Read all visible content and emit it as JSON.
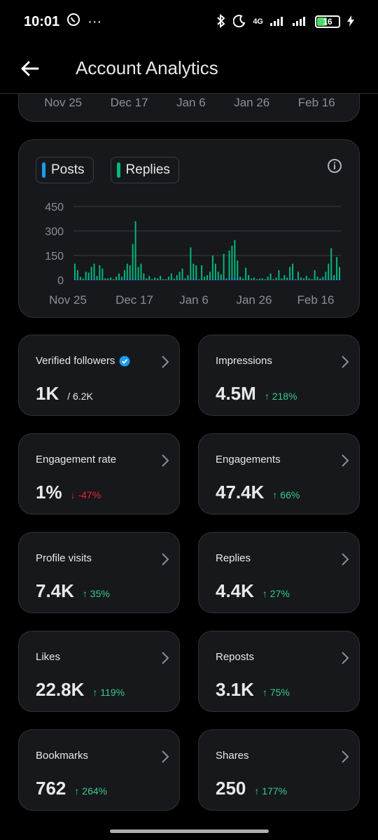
{
  "status_bar": {
    "time": "10:01",
    "network": "4G",
    "battery": "16"
  },
  "header": {
    "title": "Account Analytics"
  },
  "top_card": {
    "labels": [
      "Nov 25",
      "Dec 17",
      "Jan 6",
      "Jan 26",
      "Feb 16"
    ]
  },
  "legend": {
    "posts": "Posts",
    "replies": "Replies",
    "posts_color": "#1d9bf0",
    "replies_color": "#00ba7c"
  },
  "chart_data": {
    "type": "bar",
    "y_ticks": [
      "450",
      "300",
      "150",
      "0"
    ],
    "ylim": [
      0,
      450
    ],
    "x_ticks": [
      "Nov 25",
      "Dec 17",
      "Jan 6",
      "Jan 26",
      "Feb 16"
    ],
    "series": [
      {
        "name": "Replies",
        "color": "#00ba7c",
        "values": [
          100,
          60,
          20,
          10,
          50,
          45,
          80,
          100,
          25,
          90,
          70,
          10,
          10,
          15,
          5,
          20,
          40,
          20,
          60,
          100,
          90,
          220,
          360,
          80,
          100,
          40,
          10,
          25,
          5,
          15,
          10,
          25,
          5,
          5,
          20,
          40,
          10,
          30,
          50,
          70,
          10,
          30,
          200,
          100,
          90,
          5,
          90,
          20,
          30,
          50,
          150,
          100,
          50,
          35,
          160,
          10,
          180,
          210,
          245,
          120,
          20,
          10,
          75,
          30,
          10,
          15,
          5,
          10,
          10,
          5,
          20,
          40,
          5,
          15,
          60,
          10,
          30,
          15,
          80,
          100,
          5,
          50,
          15,
          10,
          25,
          10,
          5,
          60,
          20,
          10,
          20,
          50,
          100,
          195,
          30,
          140,
          80
        ],
        "posts": [
          10,
          5,
          0,
          0,
          5,
          5,
          8,
          10,
          0,
          5,
          5,
          0,
          0,
          0,
          0,
          0,
          5,
          0,
          5,
          8,
          10,
          10,
          15,
          5,
          5,
          0,
          0,
          5,
          0,
          0,
          0,
          0,
          0,
          0,
          0,
          0,
          0,
          0,
          5,
          5,
          0,
          0,
          15,
          10,
          5,
          0,
          5,
          0,
          0,
          5,
          10,
          10,
          5,
          5,
          10,
          0,
          10,
          15,
          15,
          10,
          0,
          0,
          5,
          0,
          0,
          0,
          0,
          0,
          0,
          0,
          0,
          5,
          0,
          0,
          5,
          0,
          0,
          0,
          5,
          10,
          0,
          5,
          0,
          0,
          0,
          0,
          0,
          5,
          0,
          0,
          0,
          5,
          5,
          10,
          5,
          10,
          5
        ]
      }
    ]
  },
  "metrics": [
    {
      "label": "Verified followers",
      "value": "1K",
      "sub": "/ 6.2K",
      "delta": "",
      "dir": "",
      "verified": true
    },
    {
      "label": "Impressions",
      "value": "4.5M",
      "sub": "",
      "delta": "↑ 218%",
      "dir": "up"
    },
    {
      "label": "Engagement rate",
      "value": "1%",
      "sub": "",
      "delta": "↓ -47%",
      "dir": "down"
    },
    {
      "label": "Engagements",
      "value": "47.4K",
      "sub": "",
      "delta": "↑ 66%",
      "dir": "up"
    },
    {
      "label": "Profile visits",
      "value": "7.4K",
      "sub": "",
      "delta": "↑ 35%",
      "dir": "up"
    },
    {
      "label": "Replies",
      "value": "4.4K",
      "sub": "",
      "delta": "↑ 27%",
      "dir": "up"
    },
    {
      "label": "Likes",
      "value": "22.8K",
      "sub": "",
      "delta": "↑ 119%",
      "dir": "up"
    },
    {
      "label": "Reposts",
      "value": "3.1K",
      "sub": "",
      "delta": "↑ 75%",
      "dir": "up"
    },
    {
      "label": "Bookmarks",
      "value": "762",
      "sub": "",
      "delta": "↑ 264%",
      "dir": "up"
    },
    {
      "label": "Shares",
      "value": "250",
      "sub": "",
      "delta": "↑ 177%",
      "dir": "up"
    }
  ]
}
